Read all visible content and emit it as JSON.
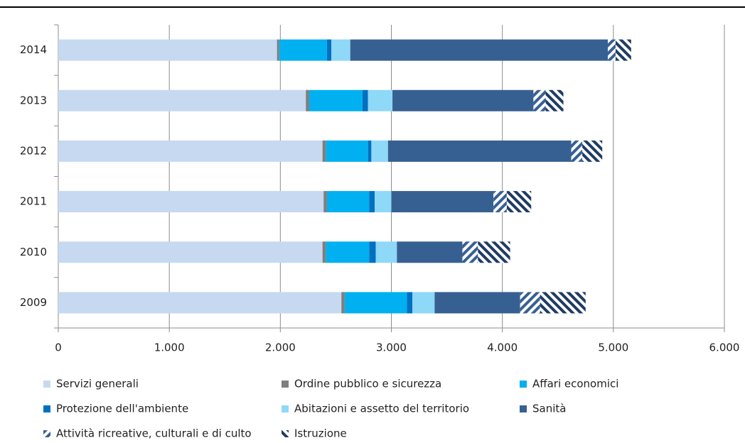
{
  "chart_data": {
    "type": "stacked-bar-horizontal",
    "categories": [
      "2014",
      "2013",
      "2012",
      "2011",
      "2010",
      "2009"
    ],
    "series": [
      {
        "name": "Servizi generali",
        "color": "#c6d9f1",
        "values": [
          1970,
          2230,
          2380,
          2390,
          2380,
          2550
        ]
      },
      {
        "name": "Ordine pubblico e sicurezza",
        "color": "#7f7f7f",
        "values": [
          20,
          30,
          30,
          30,
          30,
          30
        ]
      },
      {
        "name": "Affari economici",
        "color": "#00b0f0",
        "values": [
          430,
          480,
          380,
          380,
          390,
          560
        ]
      },
      {
        "name": "Protezione dell'ambiente",
        "color": "#0070c0",
        "values": [
          40,
          50,
          30,
          50,
          60,
          50
        ]
      },
      {
        "name": "Abitazioni e assetto del territorio",
        "color": "#8ed8f8",
        "values": [
          170,
          220,
          150,
          150,
          190,
          200
        ]
      },
      {
        "name": "Sanità",
        "color": "#376092",
        "values": [
          2320,
          1270,
          1650,
          920,
          590,
          770
        ]
      },
      {
        "name": "Attività ricreative, culturali e di culto",
        "color": "#376092",
        "hatch": "/",
        "values": [
          70,
          110,
          100,
          120,
          140,
          180
        ]
      },
      {
        "name": "Istruzione",
        "color": "#1f3b64",
        "hatch": "\\",
        "values": [
          140,
          160,
          180,
          220,
          290,
          410
        ]
      }
    ],
    "xlim": [
      0,
      6000
    ],
    "xticks": [
      0,
      {
        "value": 1000,
        "label": "1.000"
      },
      {
        "value": 2000,
        "label": "2.000"
      },
      {
        "value": 3000,
        "label": "3.000"
      },
      {
        "value": 4000,
        "label": "4.000"
      },
      {
        "value": 5000,
        "label": "5.000"
      },
      {
        "value": 6000,
        "label": "6.000"
      }
    ],
    "grid": true,
    "legend": "bottom"
  }
}
